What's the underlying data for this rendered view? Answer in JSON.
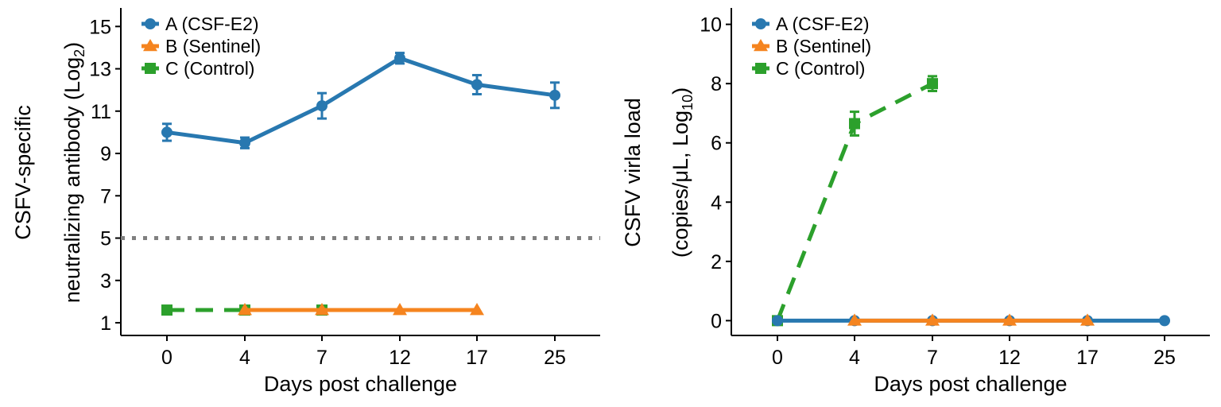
{
  "colors": {
    "A": "#2878b0",
    "B": "#f5841f",
    "C": "#2ca02c",
    "threshold": "#808080"
  },
  "chart_data": [
    {
      "type": "line",
      "xlabel": "Days post challenge",
      "ylabel_line1": "CSFV-specific",
      "ylabel_line2": "neutralizing antibody (Log",
      "ylabel_sub": "2",
      "ylabel_close": ")",
      "categories": [
        "0",
        "4",
        "7",
        "12",
        "17",
        "25"
      ],
      "yticks": [
        1,
        3,
        5,
        7,
        9,
        11,
        13,
        15
      ],
      "ylim": [
        0.4,
        15.8
      ],
      "threshold": 5,
      "legend_position": "top-left",
      "series": [
        {
          "name": "A (CSF-E2)",
          "key": "A",
          "marker": "circle",
          "dash": "solid",
          "values": [
            10.0,
            9.5,
            11.25,
            13.5,
            12.25,
            11.75
          ],
          "errors": [
            0.4,
            0.25,
            0.6,
            0.25,
            0.45,
            0.6
          ]
        },
        {
          "name": "B (Sentinel)",
          "key": "B",
          "marker": "triangle",
          "dash": "solid",
          "values": [
            null,
            1.6,
            1.6,
            1.6,
            1.6,
            null
          ],
          "errors": [
            0,
            0,
            0,
            0,
            0,
            0
          ]
        },
        {
          "name": "C (Control)",
          "key": "C",
          "marker": "square",
          "dash": "dashed",
          "values": [
            1.6,
            1.6,
            1.6,
            null,
            null,
            null
          ],
          "errors": [
            0,
            0,
            0,
            0,
            0,
            0
          ]
        }
      ]
    },
    {
      "type": "line",
      "xlabel": "Days post challenge",
      "ylabel_line1": "CSFV virla load",
      "ylabel_line2": "(copies/μL, Log",
      "ylabel_sub": "10",
      "ylabel_close": ")",
      "categories": [
        "0",
        "4",
        "7",
        "12",
        "17",
        "25"
      ],
      "yticks": [
        0,
        2,
        4,
        6,
        8,
        10
      ],
      "ylim": [
        -0.5,
        10.5
      ],
      "legend_position": "top-left",
      "series": [
        {
          "name": "A (CSF-E2)",
          "key": "A",
          "marker": "circle",
          "dash": "solid",
          "values": [
            0,
            0,
            0,
            0,
            0,
            0
          ],
          "errors": [
            0,
            0,
            0,
            0,
            0,
            0
          ]
        },
        {
          "name": "B (Sentinel)",
          "key": "B",
          "marker": "triangle",
          "dash": "solid",
          "values": [
            null,
            0,
            0,
            0,
            0,
            null
          ],
          "errors": [
            0,
            0,
            0,
            0,
            0,
            0
          ]
        },
        {
          "name": "C (Control)",
          "key": "C",
          "marker": "square",
          "dash": "dashed",
          "values": [
            0,
            6.65,
            8.0,
            null,
            null,
            null
          ],
          "errors": [
            0,
            0.4,
            0.25,
            0,
            0,
            0
          ]
        }
      ]
    }
  ]
}
